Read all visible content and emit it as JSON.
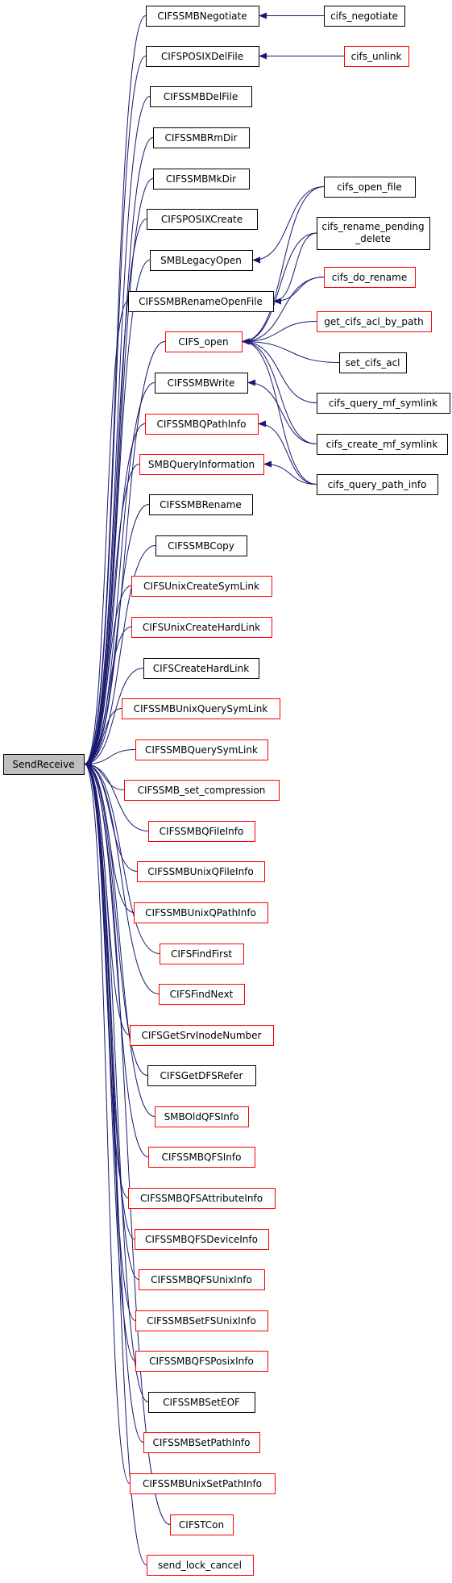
{
  "colors": {
    "edge": "#191970",
    "border_linked": "#000000",
    "border_truncated": "#ff0000",
    "root_fill": "#bfbfbf",
    "node_fill": "#ffffff"
  },
  "nodes": [
    {
      "id": "SendReceive",
      "label": "SendReceive",
      "status": "root"
    },
    {
      "id": "CIFSSMBNegotiate",
      "label": "CIFSSMBNegotiate",
      "status": "linked"
    },
    {
      "id": "cifs_negotiate",
      "label": "cifs_negotiate",
      "status": "linked"
    },
    {
      "id": "CIFSPOSIXDelFile",
      "label": "CIFSPOSIXDelFile",
      "status": "linked"
    },
    {
      "id": "cifs_unlink",
      "label": "cifs_unlink",
      "status": "truncated"
    },
    {
      "id": "CIFSSMBDelFile",
      "label": "CIFSSMBDelFile",
      "status": "linked"
    },
    {
      "id": "CIFSSMBRmDir",
      "label": "CIFSSMBRmDir",
      "status": "linked"
    },
    {
      "id": "CIFSSMBMkDir",
      "label": "CIFSSMBMkDir",
      "status": "linked"
    },
    {
      "id": "cifs_open_file",
      "label": "cifs_open_file",
      "status": "linked"
    },
    {
      "id": "CIFSPOSIXCreate",
      "label": "CIFSPOSIXCreate",
      "status": "linked"
    },
    {
      "id": "cifs_rename_pending_delete",
      "label": "cifs_rename_pending",
      "label2": "_delete",
      "status": "linked"
    },
    {
      "id": "SMBLegacyOpen",
      "label": "SMBLegacyOpen",
      "status": "linked"
    },
    {
      "id": "cifs_do_rename",
      "label": "cifs_do_rename",
      "status": "truncated"
    },
    {
      "id": "CIFSSMBRenameOpenFile",
      "label": "CIFSSMBRenameOpenFile",
      "status": "linked"
    },
    {
      "id": "get_cifs_acl_by_path",
      "label": "get_cifs_acl_by_path",
      "status": "truncated"
    },
    {
      "id": "CIFS_open",
      "label": "CIFS_open",
      "status": "truncated"
    },
    {
      "id": "set_cifs_acl",
      "label": "set_cifs_acl",
      "status": "linked"
    },
    {
      "id": "CIFSSMBWrite",
      "label": "CIFSSMBWrite",
      "status": "linked"
    },
    {
      "id": "cifs_query_mf_symlink",
      "label": "cifs_query_mf_symlink",
      "status": "linked"
    },
    {
      "id": "CIFSSMBQPathInfo",
      "label": "CIFSSMBQPathInfo",
      "status": "truncated"
    },
    {
      "id": "cifs_create_mf_symlink",
      "label": "cifs_create_mf_symlink",
      "status": "linked"
    },
    {
      "id": "SMBQueryInformation",
      "label": "SMBQueryInformation",
      "status": "truncated"
    },
    {
      "id": "cifs_query_path_info",
      "label": "cifs_query_path_info",
      "status": "linked"
    },
    {
      "id": "CIFSSMBRename",
      "label": "CIFSSMBRename",
      "status": "linked"
    },
    {
      "id": "CIFSSMBCopy",
      "label": "CIFSSMBCopy",
      "status": "linked"
    },
    {
      "id": "CIFSUnixCreateSymLink",
      "label": "CIFSUnixCreateSymLink",
      "status": "truncated"
    },
    {
      "id": "CIFSUnixCreateHardLink",
      "label": "CIFSUnixCreateHardLink",
      "status": "truncated"
    },
    {
      "id": "CIFSCreateHardLink",
      "label": "CIFSCreateHardLink",
      "status": "linked"
    },
    {
      "id": "CIFSSMBUnixQuerySymLink",
      "label": "CIFSSMBUnixQuerySymLink",
      "status": "truncated"
    },
    {
      "id": "CIFSSMBQuerySymLink",
      "label": "CIFSSMBQuerySymLink",
      "status": "truncated"
    },
    {
      "id": "CIFSSMB_set_compression",
      "label": "CIFSSMB_set_compression",
      "status": "truncated"
    },
    {
      "id": "CIFSSMBQFileInfo",
      "label": "CIFSSMBQFileInfo",
      "status": "truncated"
    },
    {
      "id": "CIFSSMBUnixQFileInfo",
      "label": "CIFSSMBUnixQFileInfo",
      "status": "truncated"
    },
    {
      "id": "CIFSSMBUnixQPathInfo",
      "label": "CIFSSMBUnixQPathInfo",
      "status": "truncated"
    },
    {
      "id": "CIFSFindFirst",
      "label": "CIFSFindFirst",
      "status": "truncated"
    },
    {
      "id": "CIFSFindNext",
      "label": "CIFSFindNext",
      "status": "truncated"
    },
    {
      "id": "CIFSGetSrvInodeNumber",
      "label": "CIFSGetSrvInodeNumber",
      "status": "truncated"
    },
    {
      "id": "CIFSGetDFSRefer",
      "label": "CIFSGetDFSRefer",
      "status": "linked"
    },
    {
      "id": "SMBOldQFSInfo",
      "label": "SMBOldQFSInfo",
      "status": "truncated"
    },
    {
      "id": "CIFSSMBQFSInfo",
      "label": "CIFSSMBQFSInfo",
      "status": "truncated"
    },
    {
      "id": "CIFSSMBQFSAttributeInfo",
      "label": "CIFSSMBQFSAttributeInfo",
      "status": "truncated"
    },
    {
      "id": "CIFSSMBQFSDeviceInfo",
      "label": "CIFSSMBQFSDeviceInfo",
      "status": "truncated"
    },
    {
      "id": "CIFSSMBQFSUnixInfo",
      "label": "CIFSSMBQFSUnixInfo",
      "status": "truncated"
    },
    {
      "id": "CIFSSMBSetFSUnixInfo",
      "label": "CIFSSMBSetFSUnixInfo",
      "status": "truncated"
    },
    {
      "id": "CIFSSMBQFSPosixInfo",
      "label": "CIFSSMBQFSPosixInfo",
      "status": "truncated"
    },
    {
      "id": "CIFSSMBSetEOF",
      "label": "CIFSSMBSetEOF",
      "status": "linked"
    },
    {
      "id": "CIFSSMBSetPathInfo",
      "label": "CIFSSMBSetPathInfo",
      "status": "truncated"
    },
    {
      "id": "CIFSSMBUnixSetPathInfo",
      "label": "CIFSSMBUnixSetPathInfo",
      "status": "truncated"
    },
    {
      "id": "CIFSTCon",
      "label": "CIFSTCon",
      "status": "truncated"
    },
    {
      "id": "send_lock_cancel",
      "label": "send_lock_cancel",
      "status": "truncated"
    }
  ],
  "edges": [
    [
      "CIFSSMBNegotiate",
      "SendReceive"
    ],
    [
      "CIFSPOSIXDelFile",
      "SendReceive"
    ],
    [
      "CIFSSMBDelFile",
      "SendReceive"
    ],
    [
      "CIFSSMBRmDir",
      "SendReceive"
    ],
    [
      "CIFSSMBMkDir",
      "SendReceive"
    ],
    [
      "CIFSPOSIXCreate",
      "SendReceive"
    ],
    [
      "SMBLegacyOpen",
      "SendReceive"
    ],
    [
      "CIFSSMBRenameOpenFile",
      "SendReceive"
    ],
    [
      "CIFS_open",
      "SendReceive"
    ],
    [
      "CIFSSMBWrite",
      "SendReceive"
    ],
    [
      "CIFSSMBQPathInfo",
      "SendReceive"
    ],
    [
      "SMBQueryInformation",
      "SendReceive"
    ],
    [
      "CIFSSMBRename",
      "SendReceive"
    ],
    [
      "CIFSSMBCopy",
      "SendReceive"
    ],
    [
      "CIFSUnixCreateSymLink",
      "SendReceive"
    ],
    [
      "CIFSUnixCreateHardLink",
      "SendReceive"
    ],
    [
      "CIFSCreateHardLink",
      "SendReceive"
    ],
    [
      "CIFSSMBUnixQuerySymLink",
      "SendReceive"
    ],
    [
      "CIFSSMBQuerySymLink",
      "SendReceive"
    ],
    [
      "CIFSSMB_set_compression",
      "SendReceive"
    ],
    [
      "CIFSSMBQFileInfo",
      "SendReceive"
    ],
    [
      "CIFSSMBUnixQFileInfo",
      "SendReceive"
    ],
    [
      "CIFSSMBUnixQPathInfo",
      "SendReceive"
    ],
    [
      "CIFSFindFirst",
      "SendReceive"
    ],
    [
      "CIFSFindNext",
      "SendReceive"
    ],
    [
      "CIFSGetSrvInodeNumber",
      "SendReceive"
    ],
    [
      "CIFSGetDFSRefer",
      "SendReceive"
    ],
    [
      "SMBOldQFSInfo",
      "SendReceive"
    ],
    [
      "CIFSSMBQFSInfo",
      "SendReceive"
    ],
    [
      "CIFSSMBQFSAttributeInfo",
      "SendReceive"
    ],
    [
      "CIFSSMBQFSDeviceInfo",
      "SendReceive"
    ],
    [
      "CIFSSMBQFSUnixInfo",
      "SendReceive"
    ],
    [
      "CIFSSMBSetFSUnixInfo",
      "SendReceive"
    ],
    [
      "CIFSSMBQFSPosixInfo",
      "SendReceive"
    ],
    [
      "CIFSSMBSetEOF",
      "SendReceive"
    ],
    [
      "CIFSSMBSetPathInfo",
      "SendReceive"
    ],
    [
      "CIFSSMBUnixSetPathInfo",
      "SendReceive"
    ],
    [
      "CIFSTCon",
      "SendReceive"
    ],
    [
      "send_lock_cancel",
      "SendReceive"
    ],
    [
      "cifs_negotiate",
      "CIFSSMBNegotiate"
    ],
    [
      "cifs_unlink",
      "CIFSPOSIXDelFile"
    ],
    [
      "cifs_open_file",
      "SMBLegacyOpen"
    ],
    [
      "cifs_rename_pending_delete",
      "CIFSSMBRenameOpenFile"
    ],
    [
      "cifs_do_rename",
      "CIFSSMBRenameOpenFile"
    ],
    [
      "cifs_open_file",
      "CIFS_open"
    ],
    [
      "cifs_rename_pending_delete",
      "CIFS_open"
    ],
    [
      "cifs_do_rename",
      "CIFS_open"
    ],
    [
      "get_cifs_acl_by_path",
      "CIFS_open"
    ],
    [
      "set_cifs_acl",
      "CIFS_open"
    ],
    [
      "cifs_query_mf_symlink",
      "CIFS_open"
    ],
    [
      "cifs_create_mf_symlink",
      "CIFS_open"
    ],
    [
      "cifs_query_path_info",
      "CIFS_open"
    ],
    [
      "cifs_create_mf_symlink",
      "CIFSSMBWrite"
    ],
    [
      "cifs_query_path_info",
      "CIFSSMBQPathInfo"
    ],
    [
      "cifs_query_path_info",
      "SMBQueryInformation"
    ]
  ]
}
